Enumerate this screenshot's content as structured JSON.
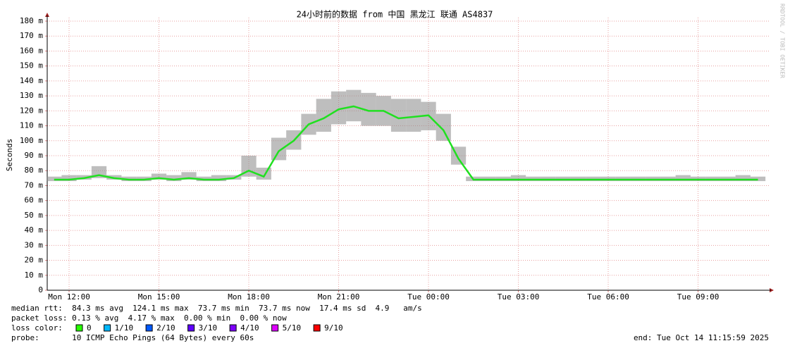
{
  "chart_data": {
    "type": "smokeping",
    "title": "24小时前的数据 from 中国 黑龙江 联通 AS4837",
    "y_label": "Seconds",
    "watermark": "RRDTOOL / TOBI OETIKER",
    "xlim": [
      11.27,
      35.27
    ],
    "xticks": [
      {
        "value": 12,
        "label": "Mon 12:00"
      },
      {
        "value": 15,
        "label": "Mon 15:00"
      },
      {
        "value": 18,
        "label": "Mon 18:00"
      },
      {
        "value": 21,
        "label": "Mon 21:00"
      },
      {
        "value": 24,
        "label": "Tue 00:00"
      },
      {
        "value": 27,
        "label": "Tue 03:00"
      },
      {
        "value": 30,
        "label": "Tue 06:00"
      },
      {
        "value": 33,
        "label": "Tue 09:00"
      }
    ],
    "ylim": [
      0,
      0.18
    ],
    "yticks": [
      0,
      {
        "value": 0.01,
        "label": "10 m"
      },
      {
        "value": 0.02,
        "label": "20 m"
      },
      {
        "value": 0.03,
        "label": "30 m"
      },
      {
        "value": 0.04,
        "label": "40 m"
      },
      {
        "value": 0.05,
        "label": "50 m"
      },
      {
        "value": 0.06,
        "label": "60 m"
      },
      {
        "value": 0.07,
        "label": "70 m"
      },
      {
        "value": 0.08,
        "label": "80 m"
      },
      {
        "value": 0.09,
        "label": "90 m"
      },
      {
        "value": 0.1,
        "label": "100 m"
      },
      {
        "value": 0.11,
        "label": "110 m"
      },
      {
        "value": 0.12,
        "label": "120 m"
      },
      {
        "value": 0.13,
        "label": "130 m"
      },
      {
        "value": 0.14,
        "label": "140 m"
      },
      {
        "value": 0.15,
        "label": "150 m"
      },
      {
        "value": 0.16,
        "label": "160 m"
      },
      {
        "value": 0.17,
        "label": "170 m"
      },
      {
        "value": 0.18,
        "label": "180 m"
      }
    ],
    "grid": true,
    "x": [
      11.5,
      12,
      12.5,
      13,
      13.5,
      14,
      14.5,
      15,
      15.5,
      16,
      16.5,
      17,
      17.5,
      18,
      18.5,
      19,
      19.5,
      20,
      20.5,
      21,
      21.5,
      22,
      22.5,
      23,
      23.5,
      24,
      24.5,
      25,
      25.5,
      26,
      26.5,
      27,
      27.5,
      28,
      28.5,
      29,
      29.5,
      30,
      30.5,
      31,
      31.5,
      32,
      32.5,
      33,
      33.5,
      34,
      34.5,
      35
    ],
    "series": [
      {
        "color": "#20e020",
        "smoke_color": "#888888",
        "values": [
          0.074,
          0.074,
          0.075,
          0.077,
          0.075,
          0.074,
          0.074,
          0.075,
          0.074,
          0.075,
          0.074,
          0.074,
          0.075,
          0.08,
          0.076,
          0.093,
          0.1,
          0.111,
          0.115,
          0.121,
          0.123,
          0.12,
          0.12,
          0.115,
          0.116,
          0.117,
          0.107,
          0.088,
          0.074,
          0.074,
          0.074,
          0.074,
          0.074,
          0.074,
          0.074,
          0.074,
          0.074,
          0.074,
          0.074,
          0.074,
          0.074,
          0.074,
          0.074,
          0.074,
          0.074,
          0.074,
          0.074,
          0.074
        ],
        "smoke_low": [
          0.073,
          0.073,
          0.074,
          0.075,
          0.074,
          0.073,
          0.073,
          0.074,
          0.073,
          0.074,
          0.073,
          0.073,
          0.074,
          0.076,
          0.074,
          0.087,
          0.094,
          0.104,
          0.106,
          0.111,
          0.113,
          0.11,
          0.11,
          0.106,
          0.106,
          0.107,
          0.1,
          0.084,
          0.073,
          0.073,
          0.073,
          0.073,
          0.073,
          0.073,
          0.073,
          0.073,
          0.073,
          0.073,
          0.073,
          0.073,
          0.073,
          0.073,
          0.073,
          0.073,
          0.073,
          0.073,
          0.073,
          0.073
        ],
        "smoke_high": [
          0.076,
          0.077,
          0.077,
          0.083,
          0.077,
          0.076,
          0.076,
          0.078,
          0.077,
          0.079,
          0.076,
          0.077,
          0.077,
          0.09,
          0.082,
          0.102,
          0.107,
          0.118,
          0.128,
          0.133,
          0.134,
          0.132,
          0.13,
          0.128,
          0.128,
          0.126,
          0.118,
          0.096,
          0.076,
          0.076,
          0.076,
          0.077,
          0.076,
          0.076,
          0.076,
          0.076,
          0.076,
          0.076,
          0.076,
          0.076,
          0.076,
          0.076,
          0.077,
          0.076,
          0.076,
          0.076,
          0.077,
          0.076
        ]
      }
    ],
    "stats": [
      "median rtt:  84.3 ms avg  124.1 ms max  73.7 ms min  73.7 ms now  17.4 ms sd  4.9   am/s",
      "packet loss: 0.13 % avg  4.17 % max  0.00 % min  0.00 % now"
    ],
    "loss_label": "loss color:",
    "loss_colors": [
      {
        "label": "0",
        "color": "#26ff00"
      },
      {
        "label": "1/10",
        "color": "#00b8ff"
      },
      {
        "label": "2/10",
        "color": "#0059ff"
      },
      {
        "label": "3/10",
        "color": "#5e00ff"
      },
      {
        "label": "4/10",
        "color": "#7e00ff"
      },
      {
        "label": "5/10",
        "color": "#dd00ff"
      },
      {
        "label": "9/10",
        "color": "#ff0000"
      }
    ],
    "probe": "probe:       10 ICMP Echo Pings (64 Bytes) every 60s",
    "end": "end: Tue Oct 14 11:15:59 2025"
  }
}
